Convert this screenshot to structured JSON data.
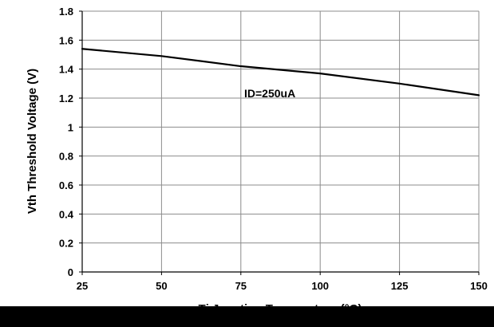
{
  "chart_data": {
    "type": "line",
    "title": "",
    "xlabel": "Tj Junction Temperature (°C)",
    "ylabel": "Vth Threshold Voltage (V)",
    "xlim": [
      25,
      150
    ],
    "ylim": [
      0,
      1.8
    ],
    "x_ticks": [
      25,
      50,
      75,
      100,
      125,
      150
    ],
    "y_ticks": [
      0,
      0.2,
      0.4,
      0.6,
      0.8,
      1,
      1.2,
      1.4,
      1.6,
      1.8
    ],
    "y_tick_labels": [
      "0",
      "0.2",
      "0.4",
      "0.6",
      "0.8",
      "1",
      "1.2",
      "1.4",
      "1.6",
      "1.8"
    ],
    "grid": true,
    "annotation": "ID=250uA",
    "series": [
      {
        "color": "#000000",
        "x": [
          25,
          50,
          75,
          100,
          125,
          150
        ],
        "y": [
          1.54,
          1.49,
          1.42,
          1.37,
          1.3,
          1.22
        ]
      }
    ]
  }
}
